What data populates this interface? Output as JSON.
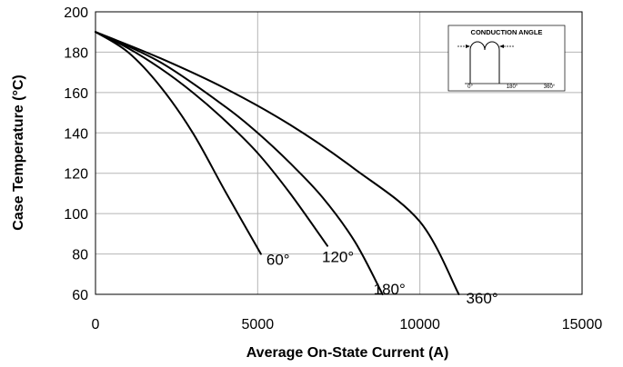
{
  "chart_data": {
    "type": "line",
    "title": "",
    "xlabel": "Average On-State Current   (A)",
    "ylabel": "Case Temperature    (°C)",
    "xlim": [
      0,
      15000
    ],
    "ylim": [
      60,
      200
    ],
    "xticks": [
      "0",
      "5000",
      "10000",
      "15000"
    ],
    "yticks": [
      "60",
      "80",
      "100",
      "120",
      "140",
      "160",
      "180",
      "200"
    ],
    "grid": true,
    "series": [
      {
        "name": "60°",
        "x": [
          0,
          1000,
          2000,
          3000,
          4000,
          5100
        ],
        "y": [
          190,
          180,
          163,
          140,
          111,
          80
        ]
      },
      {
        "name": "120°",
        "x": [
          0,
          1000,
          2000,
          3000,
          4000,
          5000,
          6000,
          7150
        ],
        "y": [
          190,
          182,
          172,
          160,
          146,
          130,
          110,
          84
        ]
      },
      {
        "name": "180°",
        "x": [
          0,
          2000,
          4000,
          5000,
          6000,
          7000,
          8000,
          8850
        ],
        "y": [
          190,
          175,
          153,
          140,
          125,
          108,
          86,
          60
        ]
      },
      {
        "name": "360°",
        "x": [
          0,
          2000,
          4000,
          6000,
          8000,
          10000,
          11200
        ],
        "y": [
          190,
          177,
          162,
          144,
          122,
          96,
          60
        ]
      }
    ],
    "inset": {
      "title": "CONDUCTION ANGLE",
      "ticks": [
        "0°",
        "180°",
        "360°"
      ]
    }
  }
}
